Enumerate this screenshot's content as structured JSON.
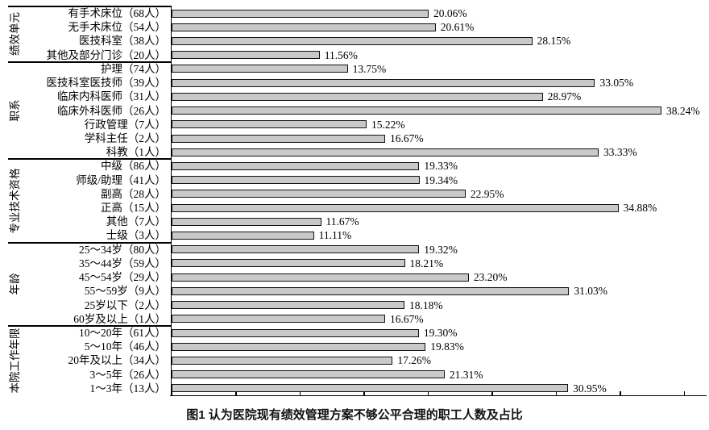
{
  "figure": {
    "caption": "图1 认为医院现有绩效管理方案不够公平合理的职工人数及占比"
  },
  "chart_data": {
    "type": "bar",
    "orientation": "horizontal",
    "value_unit": "%",
    "xlim": [
      0,
      41.5
    ],
    "tick_step": 5,
    "tick_max": 40,
    "tick_labels_visible": false,
    "grid": false,
    "bar_fill": "#c9c9c9",
    "bar_border": "#111111",
    "groups": [
      {
        "name": "绩效单元",
        "items": [
          {
            "label": "有手术床位（68人）",
            "value": 20.06,
            "value_label": "20.06%"
          },
          {
            "label": "无手术床位（54人）",
            "value": 20.61,
            "value_label": "20.61%"
          },
          {
            "label": "医技科室（38人）",
            "value": 28.15,
            "value_label": "28.15%"
          },
          {
            "label": "其他及部分门诊（20人）",
            "value": 11.56,
            "value_label": "11.56%"
          }
        ]
      },
      {
        "name": "职系",
        "items": [
          {
            "label": "护理（74人）",
            "value": 13.75,
            "value_label": "13.75%"
          },
          {
            "label": "医技科室医技师（39人）",
            "value": 33.05,
            "value_label": "33.05%"
          },
          {
            "label": "临床内科医师（31人）",
            "value": 28.97,
            "value_label": "28.97%"
          },
          {
            "label": "临床外科医师（26人）",
            "value": 38.24,
            "value_label": "38.24%"
          },
          {
            "label": "行政管理（7人）",
            "value": 15.22,
            "value_label": "15.22%"
          },
          {
            "label": "学科主任（2人）",
            "value": 16.67,
            "value_label": "16.67%"
          },
          {
            "label": "科教（1人）",
            "value": 33.33,
            "value_label": "33.33%"
          }
        ]
      },
      {
        "name": "专业技术资格",
        "items": [
          {
            "label": "中级（86人）",
            "value": 19.33,
            "value_label": "19.33%"
          },
          {
            "label": "师级/助理（41人）",
            "value": 19.34,
            "value_label": "19.34%"
          },
          {
            "label": "副高（28人）",
            "value": 22.95,
            "value_label": "22.95%"
          },
          {
            "label": "正高（15人）",
            "value": 34.88,
            "value_label": "34.88%"
          },
          {
            "label": "其他（7人）",
            "value": 11.67,
            "value_label": "11.67%"
          },
          {
            "label": "士级（3人）",
            "value": 11.11,
            "value_label": "11.11%"
          }
        ]
      },
      {
        "name": "年龄",
        "items": [
          {
            "label": "25～34岁（80人）",
            "value": 19.32,
            "value_label": "19.32%"
          },
          {
            "label": "35～44岁（59人）",
            "value": 18.21,
            "value_label": "18.21%"
          },
          {
            "label": "45～54岁（29人）",
            "value": 23.2,
            "value_label": "23.20%"
          },
          {
            "label": "55～59岁（9人）",
            "value": 31.03,
            "value_label": "31.03%"
          },
          {
            "label": "25岁以下（2人）",
            "value": 18.18,
            "value_label": "18.18%"
          },
          {
            "label": "60岁及以上（1人）",
            "value": 16.67,
            "value_label": "16.67%"
          }
        ]
      },
      {
        "name": "本院工作年限",
        "items": [
          {
            "label": "10～20年（61人）",
            "value": 19.3,
            "value_label": "19.30%"
          },
          {
            "label": "5～10年（46人）",
            "value": 19.83,
            "value_label": "19.83%"
          },
          {
            "label": "20年及以上（34人）",
            "value": 17.26,
            "value_label": "17.26%"
          },
          {
            "label": "3～5年（26人）",
            "value": 21.31,
            "value_label": "21.31%"
          },
          {
            "label": "1～3年（13人）",
            "value": 30.95,
            "value_label": "30.95%"
          }
        ]
      }
    ]
  }
}
